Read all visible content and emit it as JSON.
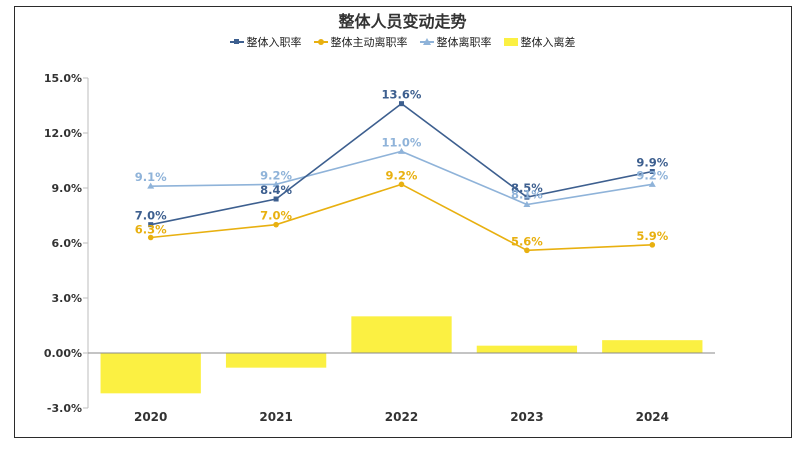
{
  "chart_data": {
    "type": "bar+line",
    "title": "整体人员变动走势",
    "categories": [
      "2020",
      "2021",
      "2022",
      "2023",
      "2024"
    ],
    "ylim": [
      -3.0,
      15.0
    ],
    "yticks": [
      "-3.0%",
      "0.00%",
      "3.0%",
      "6.0%",
      "9.0%",
      "12.0%",
      "15.0%"
    ],
    "ytick_values": [
      -3,
      0,
      3,
      6,
      9,
      12,
      15
    ],
    "series": [
      {
        "name": "整体入职率",
        "type": "line",
        "marker": "square",
        "color": "#3d5f8f",
        "values": [
          7.0,
          8.4,
          13.6,
          8.5,
          9.9
        ],
        "labels": [
          "7.0%",
          "8.4%",
          "13.6%",
          "8.5%",
          "9.9%"
        ]
      },
      {
        "name": "整体主动离职率",
        "type": "line",
        "marker": "circle",
        "color": "#e8b010",
        "values": [
          6.3,
          7.0,
          9.2,
          5.6,
          5.9
        ],
        "labels": [
          "6.3%",
          "7.0%",
          "9.2%",
          "5.6%",
          "5.9%"
        ]
      },
      {
        "name": "整体离职率",
        "type": "line",
        "marker": "triangle",
        "color": "#8fb3d9",
        "values": [
          9.1,
          9.2,
          11.0,
          8.1,
          9.2
        ],
        "labels": [
          "9.1%",
          "9.2%",
          "11.0%",
          "8.1%",
          "9.2%"
        ]
      },
      {
        "name": "整体入离差",
        "type": "bar",
        "color": "#fbf042",
        "values": [
          -2.2,
          -0.8,
          2.0,
          0.4,
          0.7
        ]
      }
    ]
  }
}
